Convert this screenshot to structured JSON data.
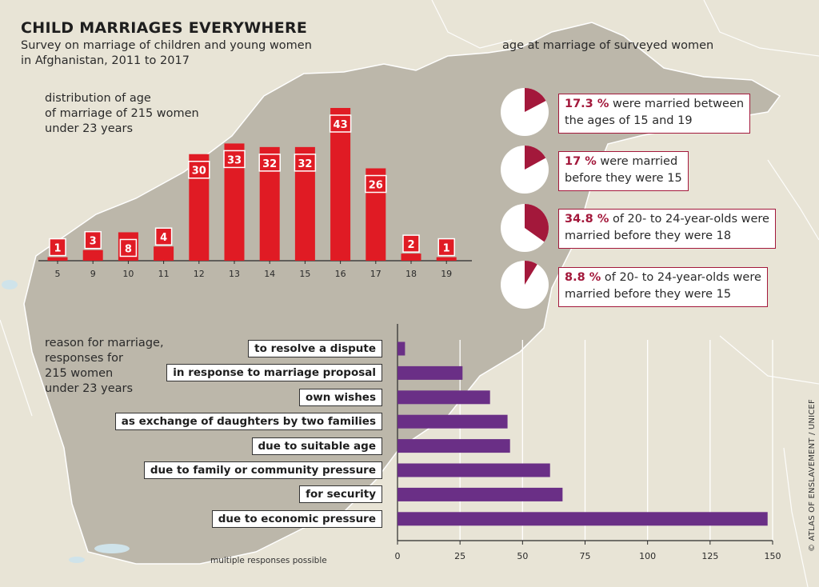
{
  "title": "CHILD MARRIAGES EVERYWHERE",
  "subtitle_line1": "Survey on marriage of children and young women",
  "subtitle_line2": "in Afghanistan, 2011 to 2017",
  "histogram_caption": [
    "distribution of age",
    "of marriage of 215 women",
    "under 23 years"
  ],
  "pie_heading": "age at marriage of surveyed women",
  "reason_caption": [
    "reason for marriage,",
    "responses for",
    "215 women",
    "under 23 years"
  ],
  "note": "multiple responses possible",
  "credit": "© ATLAS OF ENSLAVEMENT / UNICEF",
  "colors": {
    "bar": "#e01b24",
    "pie": "#a3183b",
    "hbar": "#6a2f86",
    "map": "#bcb7aa",
    "background": "#e8e4d6"
  },
  "pies": [
    {
      "value": 17.3,
      "pct": "17.3 %",
      "line1_rest": " were married between",
      "line2": "the ages of 15 and 19"
    },
    {
      "value": 17.0,
      "pct": "17 %",
      "line1_rest": " were married",
      "line2": "before they were 15"
    },
    {
      "value": 34.8,
      "pct": "34.8 %",
      "line1_rest": " of 20- to 24-year-olds were",
      "line2": "married before they were 18"
    },
    {
      "value": 8.8,
      "pct": "8.8 %",
      "line1_rest": " of 20- to 24-year-olds were",
      "line2": "married before they were 15"
    }
  ],
  "chart_data": [
    {
      "type": "bar",
      "title": "distribution of age of marriage of 215 women under 23 years",
      "categories": [
        "5",
        "9",
        "10",
        "11",
        "12",
        "13",
        "14",
        "15",
        "16",
        "17",
        "18",
        "19"
      ],
      "values": [
        1,
        3,
        8,
        4,
        30,
        33,
        32,
        32,
        43,
        26,
        2,
        1
      ],
      "xlabel": "",
      "ylabel": ""
    },
    {
      "type": "bar",
      "orientation": "horizontal",
      "title": "reason for marriage, responses for 215 women under 23 years",
      "categories": [
        "to resolve a dispute",
        "in response to marriage proposal",
        "own wishes",
        "as exchange of daughters by two families",
        "due to suitable age",
        "due to family or community pressure",
        "for security",
        "due to economic pressure"
      ],
      "values": [
        3,
        26,
        37,
        44,
        45,
        61,
        66,
        148
      ],
      "xlim": [
        0,
        150
      ],
      "xticks": [
        0,
        25,
        50,
        75,
        100,
        125,
        150
      ],
      "grid": true
    }
  ]
}
